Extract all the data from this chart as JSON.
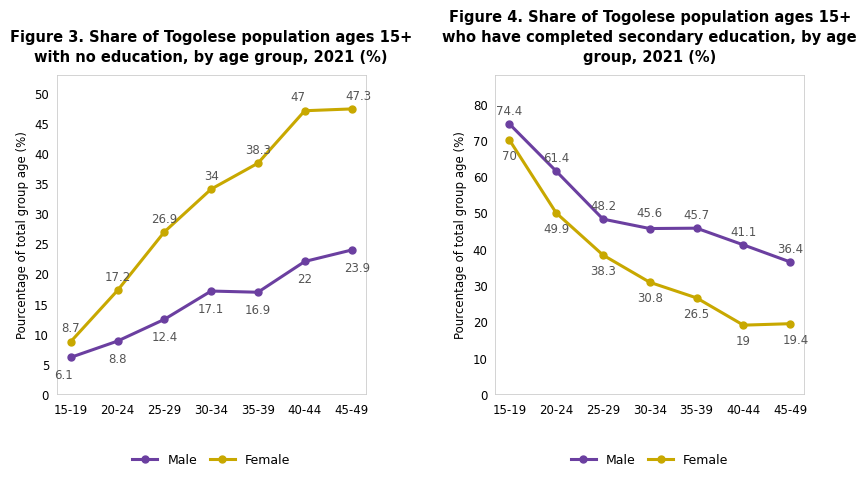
{
  "fig3": {
    "title": "Figure 3. Share of Togolese population ages 15+\nwith no education, by age group, 2021 (%)",
    "categories": [
      "15-19",
      "20-24",
      "25-29",
      "30-34",
      "35-39",
      "40-44",
      "45-49"
    ],
    "male": [
      6.1,
      8.8,
      12.4,
      17.1,
      16.9,
      22,
      23.9
    ],
    "female": [
      8.7,
      17.2,
      26.9,
      34,
      38.3,
      47,
      47.3
    ],
    "ylabel": "Pourcentage of total group age (%)",
    "ylim": [
      0,
      53
    ],
    "yticks": [
      0,
      5,
      10,
      15,
      20,
      25,
      30,
      35,
      40,
      45,
      50
    ],
    "male_label_pos": [
      [
        -0.15,
        -1.8,
        "center",
        "top"
      ],
      [
        0,
        -1.8,
        "center",
        "top"
      ],
      [
        0,
        -1.8,
        "center",
        "top"
      ],
      [
        0,
        -1.8,
        "center",
        "top"
      ],
      [
        0,
        -1.8,
        "center",
        "top"
      ],
      [
        0,
        -1.8,
        "center",
        "top"
      ],
      [
        0.12,
        -1.8,
        "center",
        "top"
      ]
    ],
    "female_label_pos": [
      [
        0,
        1.2,
        "center",
        "bottom"
      ],
      [
        0,
        1.2,
        "center",
        "bottom"
      ],
      [
        0,
        1.2,
        "center",
        "bottom"
      ],
      [
        0,
        1.2,
        "center",
        "bottom"
      ],
      [
        0,
        1.2,
        "center",
        "bottom"
      ],
      [
        -0.15,
        1.2,
        "center",
        "bottom"
      ],
      [
        0.15,
        1.2,
        "center",
        "bottom"
      ]
    ]
  },
  "fig4": {
    "title": "Figure 4. Share of Togolese population ages 15+\nwho have completed secondary education, by age\ngroup, 2021 (%)",
    "categories": [
      "15-19",
      "20-24",
      "25-29",
      "30-34",
      "35-39",
      "40-44",
      "45-49"
    ],
    "male": [
      74.4,
      61.4,
      48.2,
      45.6,
      45.7,
      41.1,
      36.4
    ],
    "female": [
      70,
      49.9,
      38.3,
      30.8,
      26.5,
      19,
      19.4
    ],
    "ylabel": "Pourcentage of total group age (%)",
    "ylim": [
      0,
      88
    ],
    "yticks": [
      0,
      10,
      20,
      30,
      40,
      50,
      60,
      70,
      80
    ],
    "male_label_pos": [
      [
        0,
        2.0,
        "center",
        "bottom"
      ],
      [
        0,
        2.0,
        "center",
        "bottom"
      ],
      [
        0,
        2.0,
        "center",
        "bottom"
      ],
      [
        0,
        2.5,
        "center",
        "bottom"
      ],
      [
        0,
        2.0,
        "center",
        "bottom"
      ],
      [
        0,
        2.0,
        "center",
        "bottom"
      ],
      [
        0,
        2.0,
        "center",
        "bottom"
      ]
    ],
    "female_label_pos": [
      [
        0,
        -2.5,
        "center",
        "top"
      ],
      [
        0,
        -2.5,
        "center",
        "top"
      ],
      [
        0,
        -2.5,
        "center",
        "top"
      ],
      [
        0,
        -2.5,
        "center",
        "top"
      ],
      [
        0,
        -2.5,
        "center",
        "top"
      ],
      [
        0,
        -2.5,
        "center",
        "top"
      ],
      [
        0.12,
        -2.5,
        "center",
        "top"
      ]
    ]
  },
  "male_color": "#6B3FA0",
  "female_color": "#C8A800",
  "line_width": 2.2,
  "marker": "o",
  "marker_size": 5,
  "label_fontsize": 8.5,
  "title_fontsize": 10.5,
  "axis_fontsize": 8.5,
  "ylabel_fontsize": 8.5,
  "legend_fontsize": 9,
  "background_color": "#ffffff",
  "plot_bg_color": "#ffffff",
  "border_color": "#cccccc"
}
